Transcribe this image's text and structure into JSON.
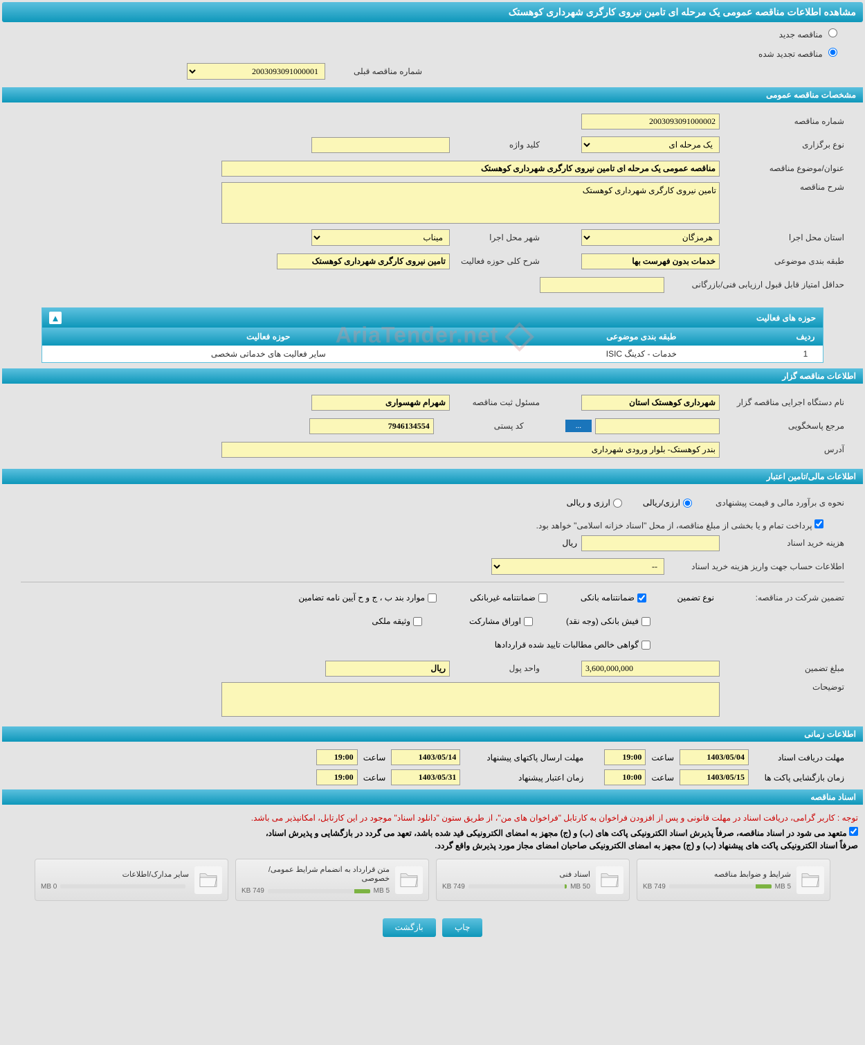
{
  "header": {
    "title": "مشاهده اطلاعات مناقصه عمومی یک مرحله ای تامین نیروی کارگری شهرداری کوهستک"
  },
  "tender_type": {
    "new_label": "مناقصه جدید",
    "renewed_label": "مناقصه تجدید شده",
    "selected": "renewed",
    "prev_number_label": "شماره مناقصه قبلی",
    "prev_number_value": "2003093091000001"
  },
  "sections": {
    "general": "مشخصات مناقصه عمومی",
    "organizer": "اطلاعات مناقصه گزار",
    "financial": "اطلاعات مالی/تامین اعتبار",
    "timing": "اطلاعات زمانی",
    "documents": "اسناد مناقصه"
  },
  "general": {
    "tender_number_label": "شماره مناقصه",
    "tender_number": "2003093091000002",
    "holding_type_label": "نوع برگزاری",
    "holding_type": "یک مرحله ای",
    "keyword_label": "کلید واژه",
    "keyword": "",
    "subject_label": "عنوان/موضوع مناقصه",
    "subject": "مناقصه عمومی یک مرحله ای تامین نیروی کارگری شهرداری کوهستک",
    "description_label": "شرح مناقصه",
    "description": "تامین نیروی کارگری شهرداری کوهستک",
    "province_label": "استان محل اجرا",
    "province": "هرمزگان",
    "city_label": "شهر محل اجرا",
    "city": "میناب",
    "category_label": "طبقه بندی موضوعی",
    "category": "خدمات بدون فهرست بها",
    "scope_label": "شرح کلی حوزه فعالیت",
    "scope": "تامین نیروی کارگری شهرداری کوهستک",
    "min_score_label": "حداقل امتیاز قابل قبول ارزیابی فنی/بازرگانی",
    "min_score": ""
  },
  "activities": {
    "title": "حوزه های فعالیت",
    "col_row": "ردیف",
    "col_category": "طبقه بندی موضوعی",
    "col_field": "حوزه فعالیت",
    "rows": [
      {
        "num": "1",
        "category": "خدمات - کدینگ ISIC",
        "field": "سایر فعالیت های خدماتی شخصی"
      }
    ]
  },
  "organizer": {
    "device_label": "نام دستگاه اجرایی مناقصه گزار",
    "device": "شهرداری کوهستک استان",
    "registrar_label": "مسئول ثبت مناقصه",
    "registrar": "شهرام شهسواری",
    "contact_label": "مرجع پاسخگویی",
    "contact": "",
    "contact_btn": "...",
    "postal_label": "کد پستی",
    "postal": "7946134554",
    "address_label": "آدرس",
    "address": "بندر کوهستک- بلوار ورودی شهرداری"
  },
  "financial": {
    "estimate_label": "نحوه ی برآورد مالی و قیمت پیشنهادی",
    "option_rial": "ارزی/ریالی",
    "option_currency": "ارزی و ریالی",
    "payment_note": "پرداخت تمام و یا بخشی از مبلغ مناقصه، از محل \"اسناد خزانه اسلامی\" خواهد بود.",
    "doc_price_label": "هزینه خرید اسناد",
    "doc_price": "",
    "rial_unit": "ریال",
    "account_label": "اطلاعات حساب جهت واریز هزینه خرید اسناد",
    "account": "--",
    "guarantee_section_label": "تضمین شرکت در مناقصه:",
    "guarantee_type_label": "نوع تضمین",
    "check_bank_guarantee": "ضمانتنامه بانکی",
    "check_nonbank": "ضمانتنامه غیربانکی",
    "check_regulation": "موارد بند ب ، ج و ح آیین نامه تضامین",
    "check_receipt": "فیش بانکی (وجه نقد)",
    "check_bonds": "اوراق مشارکت",
    "check_property": "وثیقه ملکی",
    "check_certificate": "گواهی خالص مطالبات تایید شده قراردادها",
    "guarantee_amount_label": "مبلغ تضمین",
    "guarantee_amount": "3,600,000,000",
    "currency_unit_label": "واحد پول",
    "currency_unit": "ریال",
    "notes_label": "توضیحات",
    "notes": ""
  },
  "timing": {
    "doc_deadline_label": "مهلت دریافت اسناد",
    "doc_deadline_date": "1403/05/04",
    "doc_deadline_time_label": "ساعت",
    "doc_deadline_time": "19:00",
    "proposal_label": "مهلت ارسال پاکتهای پیشنهاد",
    "proposal_date": "1403/05/14",
    "proposal_time_label": "ساعت",
    "proposal_time": "19:00",
    "opening_label": "زمان بازگشایی پاکت ها",
    "opening_date": "1403/05/15",
    "opening_time_label": "ساعت",
    "opening_time": "10:00",
    "validity_label": "زمان اعتبار پیشنهاد",
    "validity_date": "1403/05/31",
    "validity_time_label": "ساعت",
    "validity_time": "19:00"
  },
  "documents": {
    "note1": "توجه : کاربر گرامی، دریافت اسناد در مهلت قانونی و پس از افزودن فراخوان به کارتابل \"فراخوان های من\"، از طریق ستون \"دانلود اسناد\" موجود در این کارتابل، امکانپذیر می باشد.",
    "note2": "متعهد می شود در اسناد مناقصه، صرفاً پذیرش اسناد الکترونیکی پاکت های (ب) و (ج) مجهز به امضای الکترونیکی قید شده باشد، تعهد می گردد در بازگشایی و پذیرش اسناد،",
    "note3": "صرفاً اسناد الکترونیکی پاکت های پیشنهاد (ب) و (ج) مجهز به امضای الکترونیکی صاحبان امضای مجاز مورد پذیرش واقع گردد.",
    "files": [
      {
        "title": "شرایط و ضوابط مناقصه",
        "size": "749 KB",
        "total": "5 MB",
        "percent": 15
      },
      {
        "title": "اسناد فنی",
        "size": "749 KB",
        "total": "50 MB",
        "percent": 2
      },
      {
        "title": "متن قرارداد به انضمام شرایط عمومی/خصوصی",
        "size": "749 KB",
        "total": "5 MB",
        "percent": 15
      },
      {
        "title": "سایر مدارک/اطلاعات",
        "size": "0 MB",
        "total": "",
        "percent": 0
      }
    ]
  },
  "footer": {
    "print": "چاپ",
    "back": "بازگشت"
  },
  "watermark": "AriaTender.net"
}
